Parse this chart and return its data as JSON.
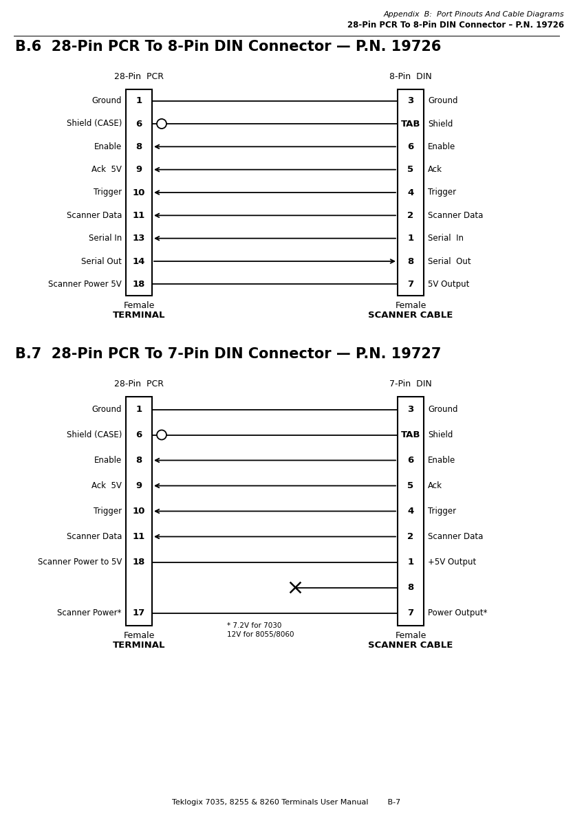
{
  "header_line1": "Appendix  B:  Port Pinouts And Cable Diagrams",
  "header_line2": "28-Pin PCR To 8-Pin DIN Connector – P.N. 19726",
  "footer": "Teklogix 7035, 8255 & 8260 Terminals User Manual        B-7",
  "section1_title": "B.6  28-Pin PCR To 8-Pin DIN Connector — P.N. 19726",
  "section1_left_header": "28-Pin  PCR",
  "section1_right_header": "8-Pin  DIN",
  "section1_left_footer1": "Female",
  "section1_left_footer2": "TERMINAL",
  "section1_right_footer1": "Female",
  "section1_right_footer2": "SCANNER CABLE",
  "section1_left_pins": [
    "1",
    "6",
    "8",
    "9",
    "10",
    "11",
    "13",
    "14",
    "18"
  ],
  "section1_left_labels": [
    "Ground",
    "Shield (CASE)",
    "Enable",
    "Ack  5V",
    "Trigger",
    "Scanner Data",
    "Serial In",
    "Serial Out",
    "Scanner Power 5V"
  ],
  "section1_right_pins": [
    "3",
    "TAB",
    "6",
    "5",
    "4",
    "2",
    "1",
    "8",
    "7"
  ],
  "section1_right_labels": [
    "Ground",
    "Shield",
    "Enable",
    "Ack",
    "Trigger",
    "Scanner Data",
    "Serial  In",
    "Serial  Out",
    "5V Output"
  ],
  "section1_connections": [
    {
      "from": 0,
      "to": 0,
      "arrow": "none"
    },
    {
      "from": 1,
      "to": 1,
      "arrow": "none"
    },
    {
      "from": 2,
      "to": 2,
      "arrow": "left"
    },
    {
      "from": 3,
      "to": 3,
      "arrow": "left"
    },
    {
      "from": 4,
      "to": 4,
      "arrow": "left"
    },
    {
      "from": 5,
      "to": 5,
      "arrow": "left"
    },
    {
      "from": 6,
      "to": 6,
      "arrow": "left"
    },
    {
      "from": 7,
      "to": 7,
      "arrow": "right"
    },
    {
      "from": 8,
      "to": 8,
      "arrow": "none"
    }
  ],
  "section2_title": "B.7  28-Pin PCR To 7-Pin DIN Connector — P.N. 19727",
  "section2_left_header": "28-Pin  PCR",
  "section2_right_header": "7-Pin  DIN",
  "section2_left_footer1": "Female",
  "section2_left_footer2": "TERMINAL",
  "section2_right_footer1": "Female",
  "section2_right_footer2": "SCANNER CABLE",
  "section2_left_pins": [
    "1",
    "6",
    "8",
    "9",
    "10",
    "11",
    "18",
    "",
    "17"
  ],
  "section2_left_labels": [
    "Ground",
    "Shield (CASE)",
    "Enable",
    "Ack  5V",
    "Trigger",
    "Scanner Data",
    "Scanner Power to 5V",
    "",
    "Scanner Power*"
  ],
  "section2_right_pins": [
    "3",
    "TAB",
    "6",
    "5",
    "4",
    "2",
    "1",
    "8",
    "7"
  ],
  "section2_right_labels": [
    "Ground",
    "Shield",
    "Enable",
    "Ack",
    "Trigger",
    "Scanner Data",
    "+5V Output",
    "",
    "Power Output*"
  ],
  "section2_connections": [
    {
      "from": 0,
      "to": 0,
      "arrow": "none"
    },
    {
      "from": 1,
      "to": 1,
      "arrow": "none"
    },
    {
      "from": 2,
      "to": 2,
      "arrow": "left"
    },
    {
      "from": 3,
      "to": 3,
      "arrow": "left"
    },
    {
      "from": 4,
      "to": 4,
      "arrow": "left"
    },
    {
      "from": 5,
      "to": 5,
      "arrow": "left"
    },
    {
      "from": 6,
      "to": 6,
      "arrow": "none"
    },
    {
      "from": 7,
      "to": 7,
      "arrow": "x_mark"
    },
    {
      "from": 8,
      "to": 8,
      "arrow": "none"
    }
  ],
  "section2_footnote_line1": "* 7.2V for 7030",
  "section2_footnote_line2": "12V for 8055/8060",
  "bg_color": "#ffffff",
  "text_color": "#000000",
  "line_color": "#000000",
  "box_color": "#000000"
}
